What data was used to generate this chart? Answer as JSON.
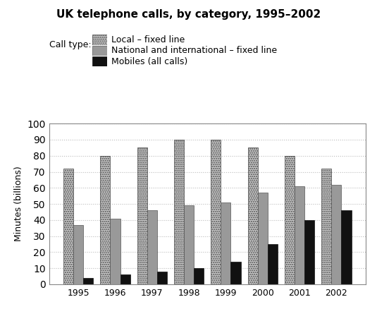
{
  "title": "UK telephone calls, by category, 1995–2002",
  "ylabel": "Minutes (billions)",
  "years": [
    1995,
    1996,
    1997,
    1998,
    1999,
    2000,
    2001,
    2002
  ],
  "local_fixed": [
    72,
    80,
    85,
    90,
    90,
    85,
    80,
    72
  ],
  "national_fixed": [
    37,
    41,
    46,
    49,
    51,
    57,
    61,
    62
  ],
  "mobiles": [
    4,
    6,
    8,
    10,
    14,
    25,
    40,
    46
  ],
  "ylim": [
    0,
    100
  ],
  "yticks": [
    0,
    10,
    20,
    30,
    40,
    50,
    60,
    70,
    80,
    90,
    100
  ],
  "color_national": "#999999",
  "color_mobiles": "#111111",
  "background_color": "#ffffff",
  "legend_label_local": "Local – fixed line",
  "legend_label_national": "National and international – fixed line",
  "legend_label_mobiles": "Mobiles (all calls)",
  "call_type_label": "Call type:"
}
